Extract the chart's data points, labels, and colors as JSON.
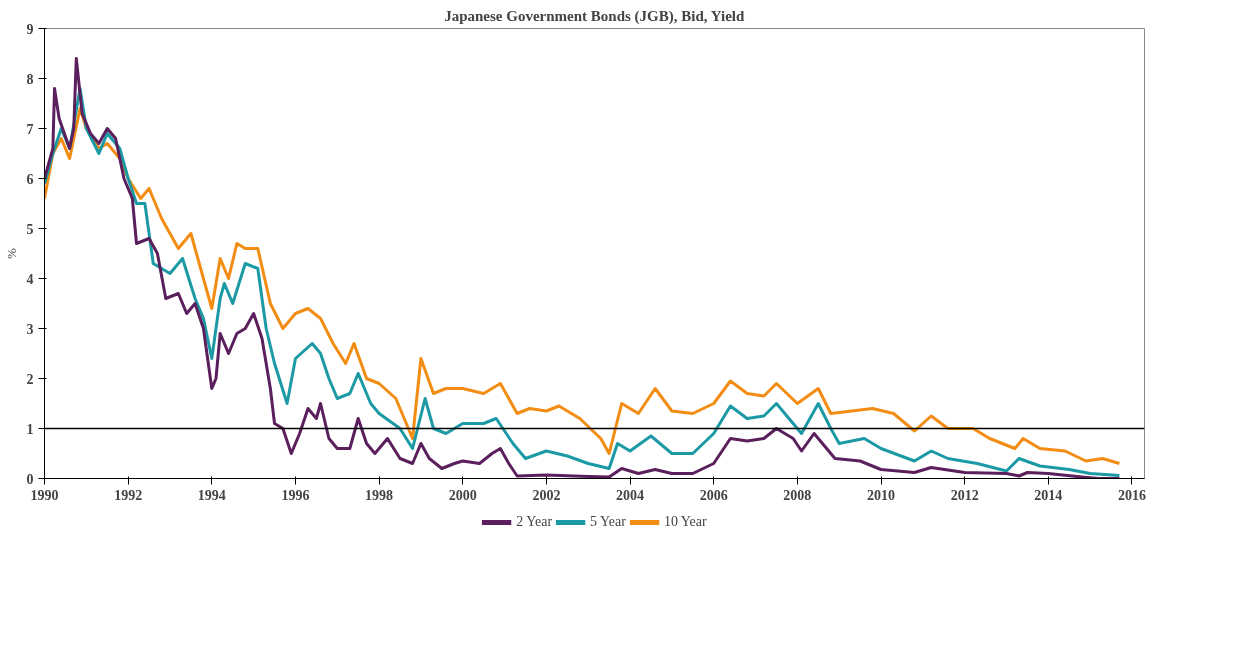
{
  "chart_data": {
    "type": "line",
    "title": "Japanese Government Bonds (JGB), Bid, Yield",
    "ylabel": "%",
    "xlim": [
      1990,
      2016.3
    ],
    "xticks": [
      1990,
      1992,
      1994,
      1996,
      1998,
      2000,
      2002,
      2004,
      2006,
      2008,
      2010,
      2012,
      2014,
      2016
    ],
    "ylim": [
      0,
      9
    ],
    "yticks": [
      0,
      1,
      2,
      3,
      4,
      5,
      6,
      7,
      8,
      9
    ],
    "grid": false,
    "legend": "bottom",
    "line_style": "solid",
    "marker": "none",
    "ref_lines": [
      {
        "axis": "y",
        "value": 1,
        "color": "#000000",
        "line_style": "solid"
      }
    ],
    "series": [
      {
        "name": "2 Year",
        "color": "#5a1f5c",
        "x": [
          1990.0,
          1990.2,
          1990.24,
          1990.35,
          1990.6,
          1990.7,
          1990.76,
          1990.9,
          1991.1,
          1991.3,
          1991.5,
          1991.7,
          1991.9,
          1992.1,
          1992.2,
          1992.5,
          1992.7,
          1992.9,
          1993.2,
          1993.4,
          1993.6,
          1993.8,
          1994.0,
          1994.1,
          1994.2,
          1994.4,
          1994.6,
          1994.8,
          1995.0,
          1995.2,
          1995.4,
          1995.5,
          1995.7,
          1995.9,
          1996.1,
          1996.3,
          1996.5,
          1996.6,
          1996.8,
          1997.0,
          1997.3,
          1997.5,
          1997.7,
          1997.9,
          1998.2,
          1998.5,
          1998.8,
          1999.0,
          1999.2,
          1999.5,
          1999.8,
          2000.0,
          2000.4,
          2000.7,
          2000.9,
          2001.1,
          2001.3,
          2002.0,
          2003.0,
          2003.5,
          2003.8,
          2004.2,
          2004.6,
          2005.0,
          2005.5,
          2006.0,
          2006.4,
          2006.8,
          2007.2,
          2007.5,
          2007.9,
          2008.1,
          2008.4,
          2008.7,
          2008.9,
          2009.5,
          2010.0,
          2010.8,
          2011.2,
          2012.0,
          2013.0,
          2013.3,
          2013.5,
          2014.0,
          2014.8,
          2015.2,
          2015.7
        ],
        "values": [
          6.0,
          6.6,
          7.8,
          7.2,
          6.6,
          7.0,
          8.4,
          7.3,
          6.9,
          6.7,
          7.0,
          6.8,
          6.0,
          5.6,
          4.7,
          4.8,
          4.5,
          3.6,
          3.7,
          3.3,
          3.5,
          3.0,
          1.8,
          2.0,
          2.9,
          2.5,
          2.9,
          3.0,
          3.3,
          2.8,
          1.8,
          1.1,
          1.0,
          0.5,
          0.9,
          1.4,
          1.2,
          1.5,
          0.8,
          0.6,
          0.6,
          1.2,
          0.7,
          0.5,
          0.8,
          0.4,
          0.3,
          0.7,
          0.4,
          0.2,
          0.3,
          0.35,
          0.3,
          0.5,
          0.6,
          0.3,
          0.05,
          0.07,
          0.04,
          0.03,
          0.2,
          0.1,
          0.18,
          0.1,
          0.1,
          0.3,
          0.8,
          0.75,
          0.8,
          1.0,
          0.8,
          0.55,
          0.9,
          0.6,
          0.4,
          0.35,
          0.18,
          0.12,
          0.22,
          0.12,
          0.1,
          0.05,
          0.12,
          0.1,
          0.03,
          0.0,
          0.0
        ]
      },
      {
        "name": "5 Year",
        "color": "#1b9aa6",
        "x": [
          1990.0,
          1990.2,
          1990.4,
          1990.6,
          1990.85,
          1991.0,
          1991.3,
          1991.5,
          1991.8,
          1992.0,
          1992.2,
          1992.4,
          1992.6,
          1993.0,
          1993.3,
          1993.6,
          1993.8,
          1994.0,
          1994.2,
          1994.3,
          1994.5,
          1994.8,
          1995.1,
          1995.3,
          1995.5,
          1995.8,
          1996.0,
          1996.4,
          1996.6,
          1996.8,
          1997.0,
          1997.3,
          1997.5,
          1997.8,
          1998.0,
          1998.5,
          1998.8,
          1999.1,
          1999.3,
          1999.6,
          2000.0,
          2000.5,
          2000.8,
          2001.2,
          2001.5,
          2002.0,
          2002.5,
          2003.0,
          2003.5,
          2003.7,
          2004.0,
          2004.5,
          2005.0,
          2005.5,
          2006.0,
          2006.4,
          2006.8,
          2007.2,
          2007.5,
          2007.9,
          2008.1,
          2008.5,
          2008.8,
          2009.0,
          2009.6,
          2010.0,
          2010.8,
          2011.2,
          2011.6,
          2012.3,
          2013.0,
          2013.3,
          2013.8,
          2014.5,
          2015.0,
          2015.7
        ],
        "values": [
          5.9,
          6.5,
          7.0,
          6.6,
          7.8,
          7.0,
          6.5,
          6.9,
          6.6,
          6.0,
          5.5,
          5.5,
          4.3,
          4.1,
          4.4,
          3.6,
          3.2,
          2.4,
          3.6,
          3.9,
          3.5,
          4.3,
          4.2,
          3.0,
          2.3,
          1.5,
          2.4,
          2.7,
          2.5,
          2.0,
          1.6,
          1.7,
          2.1,
          1.5,
          1.3,
          1.0,
          0.6,
          1.6,
          1.0,
          0.9,
          1.1,
          1.1,
          1.2,
          0.7,
          0.4,
          0.55,
          0.45,
          0.3,
          0.2,
          0.7,
          0.55,
          0.85,
          0.5,
          0.5,
          0.9,
          1.45,
          1.2,
          1.25,
          1.5,
          1.1,
          0.9,
          1.5,
          1.0,
          0.7,
          0.8,
          0.6,
          0.35,
          0.55,
          0.4,
          0.3,
          0.15,
          0.4,
          0.25,
          0.18,
          0.1,
          0.06
        ]
      },
      {
        "name": "10 Year",
        "color": "#f28c12",
        "x": [
          1990.0,
          1990.2,
          1990.4,
          1990.6,
          1990.85,
          1991.0,
          1991.3,
          1991.5,
          1991.8,
          1992.0,
          1992.3,
          1992.5,
          1992.8,
          1993.2,
          1993.5,
          1993.8,
          1994.0,
          1994.2,
          1994.4,
          1994.6,
          1994.8,
          1995.1,
          1995.4,
          1995.7,
          1996.0,
          1996.3,
          1996.6,
          1996.9,
          1997.2,
          1997.4,
          1997.7,
          1998.0,
          1998.4,
          1998.8,
          1999.0,
          1999.3,
          1999.6,
          2000.0,
          2000.5,
          2000.9,
          2001.3,
          2001.6,
          2002.0,
          2002.3,
          2002.8,
          2003.3,
          2003.5,
          2003.8,
          2004.2,
          2004.6,
          2005.0,
          2005.5,
          2006.0,
          2006.4,
          2006.8,
          2007.2,
          2007.5,
          2008.0,
          2008.5,
          2008.8,
          2009.3,
          2009.8,
          2010.3,
          2010.8,
          2011.2,
          2011.6,
          2012.2,
          2012.6,
          2013.2,
          2013.4,
          2013.8,
          2014.4,
          2014.9,
          2015.3,
          2015.7
        ],
        "values": [
          5.6,
          6.5,
          6.8,
          6.4,
          7.4,
          7.0,
          6.6,
          6.7,
          6.4,
          6.0,
          5.6,
          5.8,
          5.2,
          4.6,
          4.9,
          4.0,
          3.4,
          4.4,
          4.0,
          4.7,
          4.6,
          4.6,
          3.5,
          3.0,
          3.3,
          3.4,
          3.2,
          2.7,
          2.3,
          2.7,
          2.0,
          1.9,
          1.6,
          0.8,
          2.4,
          1.7,
          1.8,
          1.8,
          1.7,
          1.9,
          1.3,
          1.4,
          1.35,
          1.45,
          1.2,
          0.8,
          0.5,
          1.5,
          1.3,
          1.8,
          1.35,
          1.3,
          1.5,
          1.95,
          1.7,
          1.65,
          1.9,
          1.5,
          1.8,
          1.3,
          1.35,
          1.4,
          1.3,
          0.95,
          1.25,
          1.0,
          1.0,
          0.8,
          0.6,
          0.8,
          0.6,
          0.55,
          0.35,
          0.4,
          0.3
        ]
      }
    ]
  }
}
